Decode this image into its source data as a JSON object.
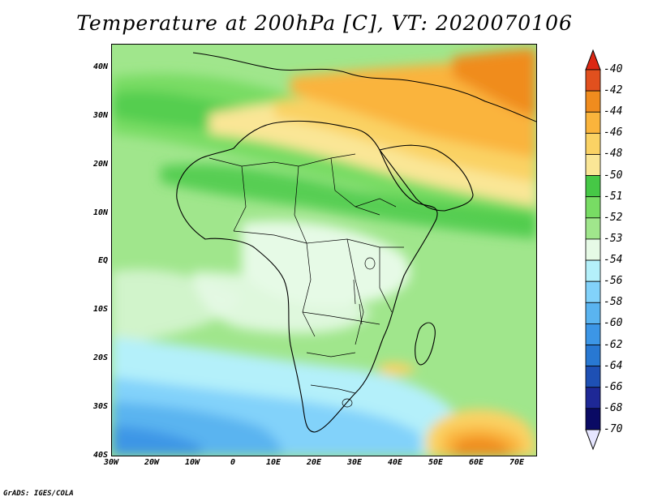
{
  "title": "Temperature at 200hPa [C], VT: 2020070106",
  "credit": "GrADS: IGES/COLA",
  "map": {
    "lon_range": [
      -30,
      75
    ],
    "lat_range": [
      -40,
      45
    ],
    "lat_labels": [
      "40N",
      "30N",
      "20N",
      "10N",
      "EQ",
      "10S",
      "20S",
      "30S",
      "40S"
    ],
    "lat_values": [
      40,
      30,
      20,
      10,
      0,
      -10,
      -20,
      -30,
      -40
    ],
    "lon_labels": [
      "30W",
      "20W",
      "10W",
      "0",
      "10E",
      "20E",
      "30E",
      "40E",
      "50E",
      "60E",
      "70E"
    ],
    "lon_values": [
      -30,
      -20,
      -10,
      0,
      10,
      20,
      30,
      40,
      50,
      60,
      70
    ]
  },
  "colorbar": {
    "labels": [
      "-40",
      "-42",
      "-44",
      "-46",
      "-48",
      "-50",
      "-51",
      "-52",
      "-53",
      "-54",
      "-56",
      "-58",
      "-60",
      "-62",
      "-64",
      "-66",
      "-68",
      "-70"
    ],
    "colors": [
      "#c81e14",
      "#e1501e",
      "#f08c1e",
      "#fab43c",
      "#fad264",
      "#fae696",
      "#46c846",
      "#78dc64",
      "#a0e68c",
      "#e6fae6",
      "#b4f0fa",
      "#82d2fa",
      "#5ab4f0",
      "#3c96e6",
      "#2878d2",
      "#1e50b4",
      "#1e2896",
      "#0a0a64"
    ],
    "top_color": "#dc2814",
    "bottom_color": "#e6e6ff"
  }
}
